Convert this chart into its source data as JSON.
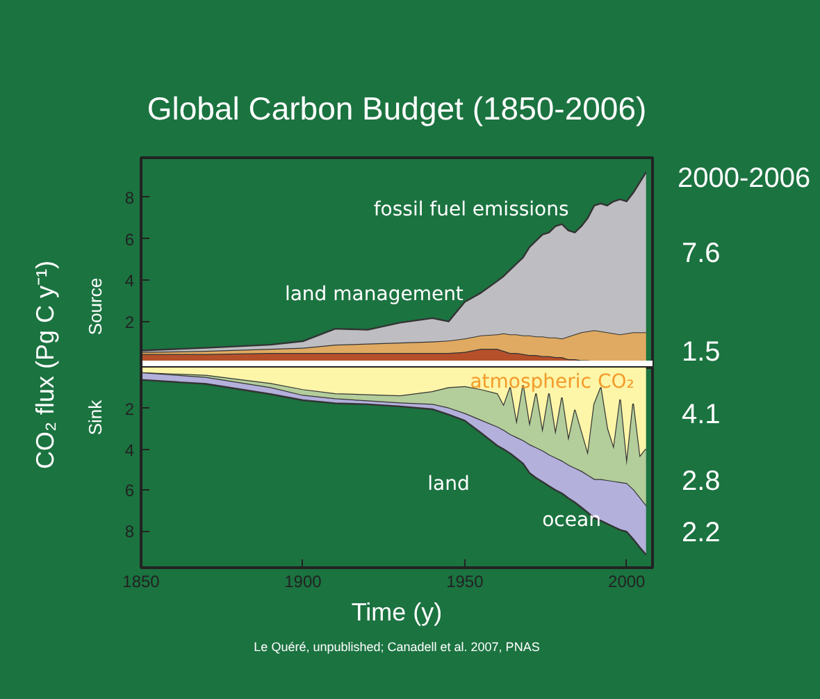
{
  "chart_data": [
    {
      "type": "area",
      "stacked": true,
      "title": "Global Carbon Budget (1850-2006)",
      "ylabel": "CO₂ flux (Pg C y⁻¹)",
      "x": [
        1850,
        1870,
        1890,
        1900,
        1910,
        1920,
        1930,
        1940,
        1945,
        1950,
        1955,
        1960,
        1962,
        1964,
        1966,
        1968,
        1970,
        1972,
        1974,
        1976,
        1978,
        1980,
        1982,
        1984,
        1986,
        1988,
        1990,
        1992,
        1994,
        1996,
        1998,
        2000,
        2002,
        2004,
        2006
      ],
      "series": [
        {
          "color": "#b5502a",
          "values": [
            0.45,
            0.45,
            0.5,
            0.5,
            0.5,
            0.5,
            0.5,
            0.5,
            0.5,
            0.55,
            0.7,
            0.7,
            0.6,
            0.5,
            0.5,
            0.45,
            0.4,
            0.4,
            0.35,
            0.35,
            0.3,
            0.3,
            0.2,
            0.2,
            0.15,
            0.15,
            0.1,
            0.05,
            0.05,
            0.05,
            0.05,
            0,
            0,
            0,
            0
          ]
        },
        {
          "color": "#e0aa62",
          "values": [
            0.1,
            0.15,
            0.2,
            0.25,
            0.4,
            0.45,
            0.5,
            0.55,
            0.6,
            0.65,
            0.65,
            0.7,
            0.85,
            0.9,
            0.9,
            0.9,
            0.95,
            0.9,
            0.95,
            0.9,
            0.95,
            0.9,
            1.1,
            1.2,
            1.35,
            1.4,
            1.5,
            1.5,
            1.45,
            1.4,
            1.35,
            1.45,
            1.5,
            1.5,
            1.5
          ]
        },
        {
          "color": "#bebec2",
          "values": [
            0.07,
            0.15,
            0.2,
            0.32,
            0.77,
            0.67,
            0.96,
            1.13,
            0.92,
            1.76,
            2.05,
            2.56,
            2.75,
            3.1,
            3.4,
            3.75,
            4.25,
            4.6,
            4.9,
            5.05,
            5.35,
            5.5,
            5.1,
            4.9,
            5.1,
            5.45,
            6.0,
            6.15,
            6.1,
            6.35,
            6.5,
            6.35,
            6.7,
            7.2,
            7.7
          ]
        }
      ],
      "xlim": [
        1850,
        2008
      ],
      "xticks": [
        1850,
        1900,
        1950,
        2000
      ],
      "ylim": [
        -0.2,
        9.9
      ],
      "yticks": [
        2,
        4,
        6,
        8
      ],
      "tick_labels": "y",
      "ref_lines": [
        {
          "axis": "y",
          "value": 0,
          "color": "#ffffff"
        }
      ],
      "annotations": [
        "fossil fuel emissions",
        "land management",
        "2000-2006",
        "7.6",
        "1.5",
        "Source"
      ],
      "grid": false
    },
    {
      "type": "area",
      "stacked": true,
      "xlabel": "Time (y)",
      "x": [
        1850,
        1870,
        1890,
        1900,
        1910,
        1920,
        1930,
        1940,
        1945,
        1950,
        1955,
        1960,
        1962,
        1964,
        1966,
        1968,
        1970,
        1972,
        1974,
        1976,
        1978,
        1980,
        1982,
        1984,
        1986,
        1988,
        1990,
        1992,
        1994,
        1996,
        1998,
        2000,
        2002,
        2004,
        2006
      ],
      "series": [
        {
          "color": "#fdf5a8",
          "values": [
            0.27,
            0.4,
            0.8,
            1.1,
            1.3,
            1.35,
            1.4,
            1.2,
            1.0,
            0.95,
            1.1,
            1.3,
            1.9,
            1.0,
            2.8,
            0.9,
            2.9,
            1.3,
            3.2,
            1.3,
            3.3,
            1.5,
            3.6,
            2.1,
            3.2,
            4.3,
            1.8,
            1.0,
            3.0,
            4.0,
            1.6,
            4.8,
            1.8,
            4.4,
            4.0
          ]
        },
        {
          "color": "#b3cd9b",
          "values": [
            0,
            0.1,
            0.2,
            0.28,
            0.25,
            0.3,
            0.35,
            0.62,
            1.0,
            1.32,
            1.5,
            1.63,
            1.2,
            2.3,
            0.65,
            2.7,
            0.9,
            2.65,
            0.9,
            3.0,
            1.15,
            3.1,
            1.2,
            2.85,
            1.9,
            1.0,
            3.7,
            4.5,
            2.55,
            1.6,
            4.05,
            0.9,
            4.2,
            2.0,
            2.8
          ]
        },
        {
          "color": "#b3b0dc",
          "values": [
            0.33,
            0.3,
            0.3,
            0.22,
            0.2,
            0.15,
            0.15,
            0.22,
            0.3,
            0.33,
            0.6,
            0.89,
            0.9,
            0.9,
            1.0,
            1.1,
            1.36,
            1.45,
            1.5,
            1.5,
            1.55,
            1.56,
            1.6,
            1.65,
            1.75,
            1.8,
            1.88,
            2.0,
            2.1,
            2.2,
            2.3,
            2.34,
            2.4,
            2.4,
            2.36
          ]
        }
      ],
      "xlim": [
        1850,
        2008
      ],
      "xticks": [
        1850,
        1900,
        1950,
        2000
      ],
      "ylim": [
        9.8,
        0
      ],
      "yticks": [
        2,
        4,
        6,
        8
      ],
      "annotations": [
        "atmospheric CO₂",
        "land",
        "ocean",
        "4.1",
        "2.8",
        "2.2",
        "Sink",
        "Le Quéré, unpublished; Canadell et al. 2007, PNAS"
      ],
      "grid": false
    }
  ]
}
